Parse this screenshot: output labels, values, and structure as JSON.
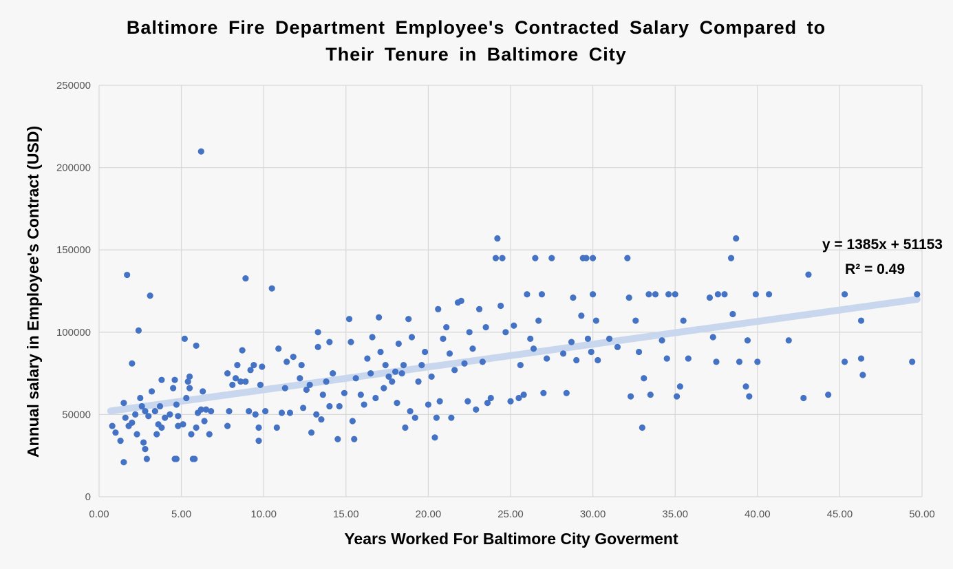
{
  "chart_data": {
    "type": "scatter",
    "title_lines": [
      "Baltimore Fire Department Employee's Contracted Salary Compared to",
      "Their Tenure in Baltimore City"
    ],
    "xlabel": "Years Worked For Baltimore City Goverment",
    "ylabel": "Annual salary in Employee's Contract (USD)",
    "xlim": [
      0,
      50
    ],
    "ylim": [
      0,
      250000
    ],
    "x_ticks": [
      "0.00",
      "5.00",
      "10.00",
      "15.00",
      "20.00",
      "25.00",
      "30.00",
      "35.00",
      "40.00",
      "45.00",
      "50.00"
    ],
    "y_ticks": [
      "0",
      "50000",
      "100000",
      "150000",
      "200000",
      "250000"
    ],
    "grid": true,
    "point_color": "#4472c4",
    "trendline": {
      "slope": 1385,
      "intercept": 51153,
      "x_range": [
        0.7,
        49.7
      ],
      "color": "#c9d7ee",
      "equation_label": "y = 1385x + 51153",
      "r2_label": "R² = 0.49"
    },
    "points": [
      [
        1.7,
        134800
      ],
      [
        3.1,
        122200
      ],
      [
        2.4,
        101000
      ],
      [
        2.0,
        81000
      ],
      [
        6.2,
        209800
      ],
      [
        8.9,
        132700
      ],
      [
        10.5,
        126600
      ],
      [
        5.2,
        96000
      ],
      [
        5.9,
        91800
      ],
      [
        0.8,
        43000
      ],
      [
        1.0,
        39000
      ],
      [
        1.3,
        34000
      ],
      [
        1.5,
        21000
      ],
      [
        1.5,
        57000
      ],
      [
        1.6,
        48000
      ],
      [
        1.8,
        43000
      ],
      [
        2.0,
        45000
      ],
      [
        2.2,
        50000
      ],
      [
        2.3,
        38000
      ],
      [
        2.5,
        60000
      ],
      [
        2.6,
        55000
      ],
      [
        2.7,
        33000
      ],
      [
        2.8,
        29000
      ],
      [
        2.8,
        52000
      ],
      [
        2.9,
        23000
      ],
      [
        3.0,
        49000
      ],
      [
        3.2,
        64000
      ],
      [
        3.4,
        52000
      ],
      [
        3.5,
        38000
      ],
      [
        3.6,
        44000
      ],
      [
        3.7,
        55000
      ],
      [
        3.8,
        42000
      ],
      [
        3.8,
        71000
      ],
      [
        4.0,
        48000
      ],
      [
        4.3,
        50000
      ],
      [
        4.5,
        66000
      ],
      [
        4.6,
        71000
      ],
      [
        4.6,
        23000
      ],
      [
        4.7,
        23000
      ],
      [
        4.7,
        56000
      ],
      [
        4.8,
        49000
      ],
      [
        4.8,
        43000
      ],
      [
        5.1,
        44000
      ],
      [
        5.3,
        60000
      ],
      [
        5.4,
        70000
      ],
      [
        5.5,
        66000
      ],
      [
        5.5,
        73000
      ],
      [
        5.6,
        38000
      ],
      [
        5.7,
        23000
      ],
      [
        5.8,
        23000
      ],
      [
        5.9,
        42000
      ],
      [
        6.0,
        51000
      ],
      [
        6.2,
        53000
      ],
      [
        6.3,
        64000
      ],
      [
        6.4,
        46000
      ],
      [
        6.5,
        53000
      ],
      [
        6.7,
        38000
      ],
      [
        6.8,
        52000
      ],
      [
        7.8,
        43000
      ],
      [
        7.8,
        75000
      ],
      [
        7.9,
        52000
      ],
      [
        8.1,
        68000
      ],
      [
        8.3,
        72000
      ],
      [
        8.4,
        80000
      ],
      [
        8.6,
        70000
      ],
      [
        8.7,
        89000
      ],
      [
        8.9,
        70000
      ],
      [
        9.1,
        52000
      ],
      [
        9.2,
        77000
      ],
      [
        9.4,
        80000
      ],
      [
        9.5,
        50000
      ],
      [
        9.7,
        42000
      ],
      [
        9.7,
        34000
      ],
      [
        9.8,
        68000
      ],
      [
        9.9,
        79000
      ],
      [
        10.1,
        52000
      ],
      [
        10.8,
        42000
      ],
      [
        10.9,
        90000
      ],
      [
        11.1,
        51000
      ],
      [
        11.3,
        66000
      ],
      [
        11.4,
        82000
      ],
      [
        11.6,
        51000
      ],
      [
        11.8,
        85000
      ],
      [
        12.2,
        72000
      ],
      [
        12.3,
        80000
      ],
      [
        12.4,
        54000
      ],
      [
        12.6,
        65000
      ],
      [
        12.8,
        68000
      ],
      [
        12.9,
        39000
      ],
      [
        13.2,
        50000
      ],
      [
        13.3,
        100000
      ],
      [
        13.3,
        91000
      ],
      [
        13.5,
        47000
      ],
      [
        13.6,
        62000
      ],
      [
        13.8,
        70000
      ],
      [
        14.0,
        94000
      ],
      [
        14.0,
        55000
      ],
      [
        14.2,
        75000
      ],
      [
        14.5,
        35000
      ],
      [
        14.6,
        55000
      ],
      [
        14.9,
        63000
      ],
      [
        15.2,
        108000
      ],
      [
        15.3,
        94000
      ],
      [
        15.4,
        46000
      ],
      [
        15.5,
        35000
      ],
      [
        15.6,
        72000
      ],
      [
        15.9,
        62000
      ],
      [
        16.1,
        56000
      ],
      [
        16.3,
        84000
      ],
      [
        16.5,
        75000
      ],
      [
        16.6,
        97000
      ],
      [
        16.8,
        60000
      ],
      [
        17.0,
        109000
      ],
      [
        17.1,
        88000
      ],
      [
        17.3,
        66000
      ],
      [
        17.4,
        80000
      ],
      [
        17.6,
        73000
      ],
      [
        17.8,
        70000
      ],
      [
        18.0,
        76000
      ],
      [
        18.1,
        57000
      ],
      [
        18.2,
        93000
      ],
      [
        18.4,
        75000
      ],
      [
        18.5,
        80000
      ],
      [
        18.6,
        42000
      ],
      [
        18.8,
        108000
      ],
      [
        18.9,
        52000
      ],
      [
        19.0,
        97000
      ],
      [
        19.2,
        48000
      ],
      [
        19.4,
        70000
      ],
      [
        19.6,
        80000
      ],
      [
        19.8,
        88000
      ],
      [
        20.0,
        56000
      ],
      [
        20.2,
        73000
      ],
      [
        20.4,
        36000
      ],
      [
        20.5,
        48000
      ],
      [
        20.6,
        114000
      ],
      [
        20.7,
        58000
      ],
      [
        20.9,
        96000
      ],
      [
        21.1,
        103000
      ],
      [
        21.3,
        87000
      ],
      [
        21.4,
        48000
      ],
      [
        21.6,
        77000
      ],
      [
        21.8,
        118000
      ],
      [
        22.0,
        119000
      ],
      [
        22.2,
        81000
      ],
      [
        22.4,
        58000
      ],
      [
        22.5,
        100000
      ],
      [
        22.7,
        90000
      ],
      [
        22.9,
        53000
      ],
      [
        23.1,
        114000
      ],
      [
        23.3,
        82000
      ],
      [
        23.5,
        103000
      ],
      [
        23.6,
        57000
      ],
      [
        23.8,
        60000
      ],
      [
        24.1,
        145000
      ],
      [
        24.2,
        157000
      ],
      [
        24.4,
        116000
      ],
      [
        24.5,
        145000
      ],
      [
        24.7,
        100000
      ],
      [
        25.0,
        58000
      ],
      [
        25.2,
        104000
      ],
      [
        25.5,
        60000
      ],
      [
        25.6,
        80000
      ],
      [
        25.8,
        62000
      ],
      [
        26.0,
        123000
      ],
      [
        26.2,
        96000
      ],
      [
        26.4,
        90000
      ],
      [
        26.5,
        145000
      ],
      [
        26.7,
        107000
      ],
      [
        26.9,
        123000
      ],
      [
        27.0,
        63000
      ],
      [
        27.2,
        84000
      ],
      [
        27.5,
        145000
      ],
      [
        28.2,
        87000
      ],
      [
        28.4,
        63000
      ],
      [
        28.7,
        94000
      ],
      [
        28.8,
        121000
      ],
      [
        29.0,
        83000
      ],
      [
        29.3,
        110000
      ],
      [
        29.4,
        145000
      ],
      [
        29.6,
        145000
      ],
      [
        29.7,
        96000
      ],
      [
        29.9,
        88000
      ],
      [
        30.0,
        145000
      ],
      [
        30.0,
        123000
      ],
      [
        30.2,
        107000
      ],
      [
        30.3,
        83000
      ],
      [
        31.0,
        96000
      ],
      [
        31.5,
        91000
      ],
      [
        32.1,
        145000
      ],
      [
        32.2,
        121000
      ],
      [
        32.3,
        61000
      ],
      [
        32.6,
        107000
      ],
      [
        32.8,
        88000
      ],
      [
        33.0,
        42000
      ],
      [
        33.1,
        72000
      ],
      [
        33.4,
        123000
      ],
      [
        33.5,
        62000
      ],
      [
        33.8,
        123000
      ],
      [
        34.2,
        95000
      ],
      [
        34.5,
        84000
      ],
      [
        34.6,
        123000
      ],
      [
        35.0,
        123000
      ],
      [
        35.1,
        61000
      ],
      [
        35.3,
        67000
      ],
      [
        35.5,
        107000
      ],
      [
        35.8,
        84000
      ],
      [
        37.1,
        121000
      ],
      [
        37.3,
        97000
      ],
      [
        37.5,
        82000
      ],
      [
        37.6,
        123000
      ],
      [
        38.0,
        123000
      ],
      [
        38.4,
        145000
      ],
      [
        38.5,
        111000
      ],
      [
        38.7,
        157000
      ],
      [
        38.9,
        82000
      ],
      [
        39.3,
        67000
      ],
      [
        39.4,
        95000
      ],
      [
        39.5,
        61000
      ],
      [
        39.9,
        123000
      ],
      [
        40.0,
        82000
      ],
      [
        40.7,
        123000
      ],
      [
        41.9,
        95000
      ],
      [
        42.8,
        60000
      ],
      [
        43.1,
        135000
      ],
      [
        44.3,
        62000
      ],
      [
        45.3,
        123000
      ],
      [
        45.3,
        82000
      ],
      [
        46.3,
        107000
      ],
      [
        46.3,
        84000
      ],
      [
        46.4,
        74000
      ],
      [
        49.4,
        82000
      ],
      [
        49.7,
        123000
      ]
    ]
  }
}
